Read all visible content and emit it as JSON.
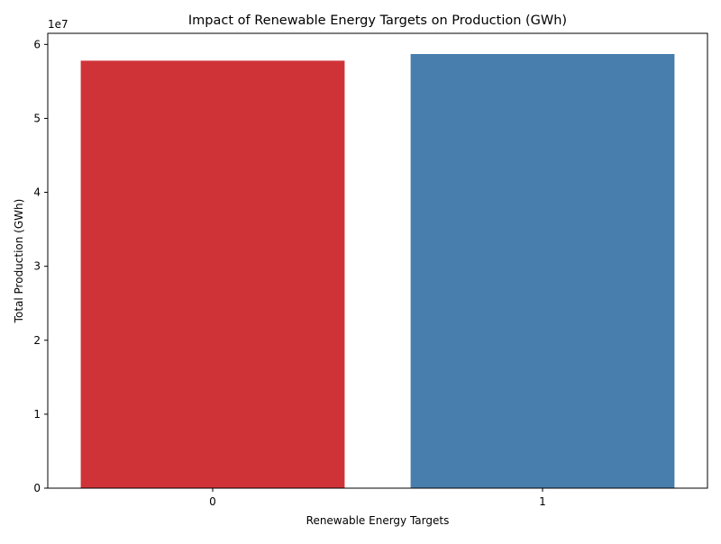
{
  "chart_data": {
    "type": "bar",
    "title": "Impact of Renewable Energy Targets on Production (GWh)",
    "xlabel": "Renewable Energy Targets",
    "ylabel": "Total Production (GWh)",
    "categories": [
      "0",
      "1"
    ],
    "values": [
      57800000,
      58700000
    ],
    "colors": [
      "#d03337",
      "#477ead"
    ],
    "ylim": [
      0,
      61500000
    ],
    "yticks": [
      0,
      10000000,
      20000000,
      30000000,
      40000000,
      50000000,
      60000000
    ],
    "ytick_labels": [
      "0",
      "1",
      "2",
      "3",
      "4",
      "5",
      "6"
    ],
    "y_offset_label": "1e7",
    "grid": false,
    "legend": "none"
  }
}
